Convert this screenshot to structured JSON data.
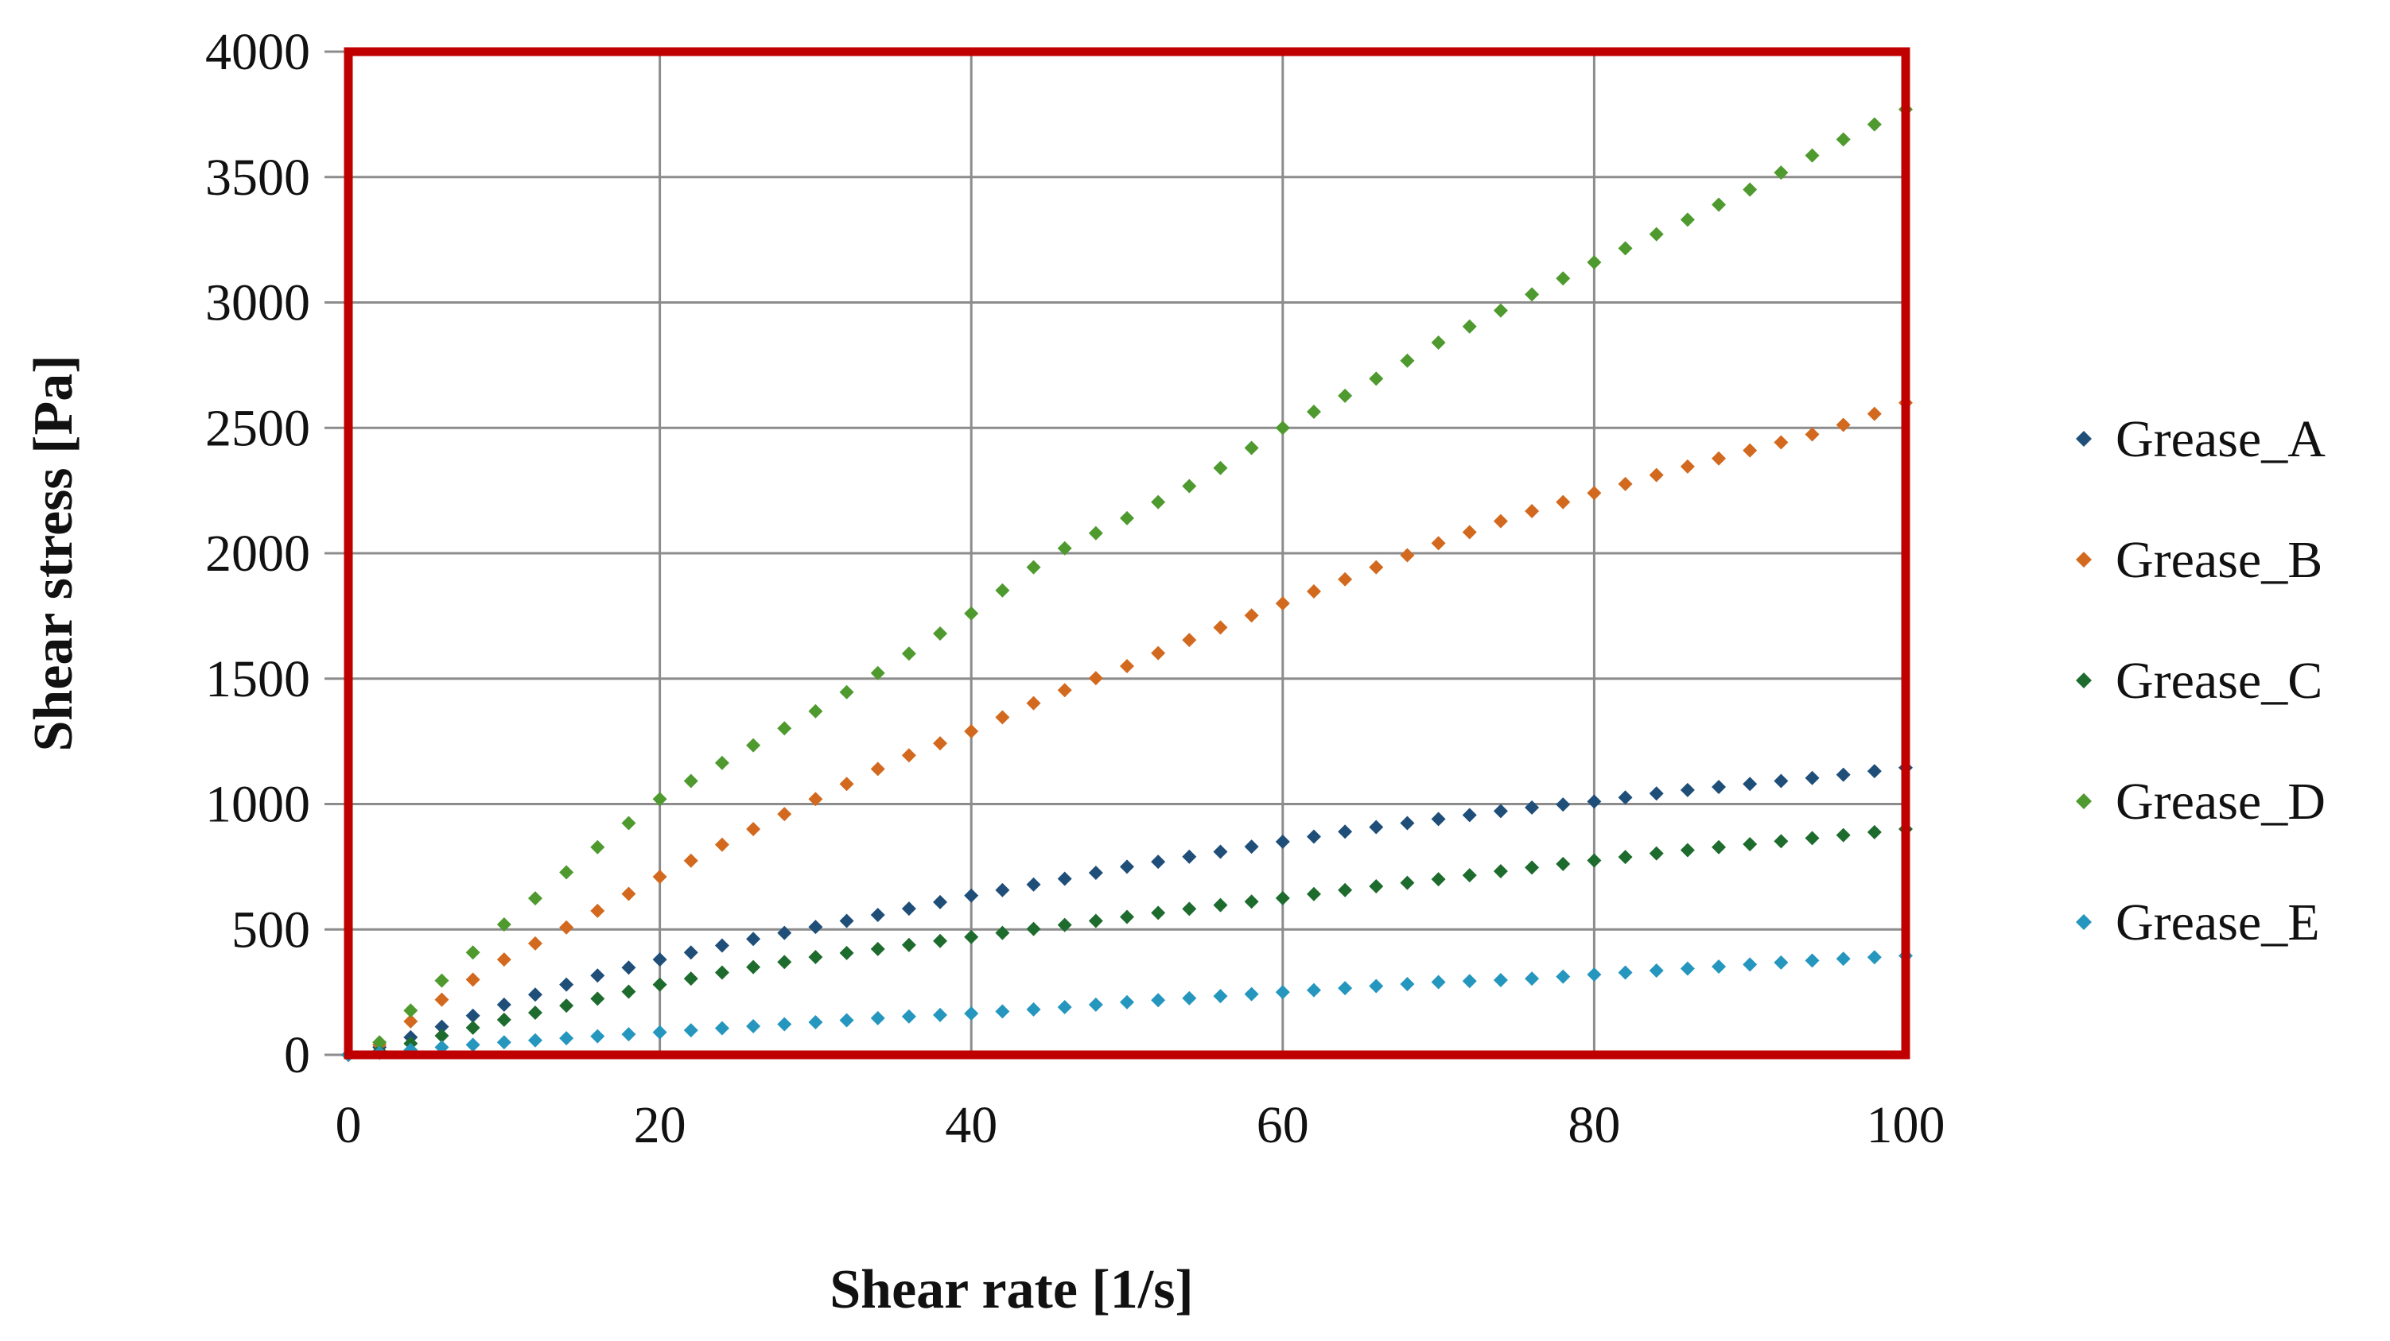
{
  "chart_data": {
    "type": "scatter",
    "title": "",
    "xlabel": "Shear rate [1/s]",
    "ylabel": "Shear stress [Pa]",
    "xlim": [
      0,
      100
    ],
    "ylim": [
      0,
      4000
    ],
    "x_ticks": [
      "0",
      "20",
      "40",
      "60",
      "80",
      "100"
    ],
    "y_ticks": [
      "0",
      "500",
      "1000",
      "1500",
      "2000",
      "2500",
      "3000",
      "3500",
      "4000"
    ],
    "grid": true,
    "legend_position": "right",
    "plot_border_color": "#c00000",
    "x_sample_step": 2,
    "series": [
      {
        "name": "Grease_A",
        "color": "#1f4e79",
        "points": [
          [
            0,
            0
          ],
          [
            2,
            30
          ],
          [
            5,
            90
          ],
          [
            10,
            200
          ],
          [
            15,
            300
          ],
          [
            20,
            380
          ],
          [
            25,
            450
          ],
          [
            30,
            510
          ],
          [
            35,
            570
          ],
          [
            40,
            635
          ],
          [
            45,
            690
          ],
          [
            50,
            750
          ],
          [
            55,
            800
          ],
          [
            60,
            850
          ],
          [
            65,
            900
          ],
          [
            70,
            940
          ],
          [
            75,
            980
          ],
          [
            80,
            1010
          ],
          [
            85,
            1050
          ],
          [
            90,
            1080
          ],
          [
            95,
            1110
          ],
          [
            100,
            1145
          ]
        ]
      },
      {
        "name": "Grease_B",
        "color": "#d2691e",
        "points": [
          [
            0,
            0
          ],
          [
            2,
            40
          ],
          [
            5,
            180
          ],
          [
            10,
            380
          ],
          [
            15,
            540
          ],
          [
            20,
            710
          ],
          [
            25,
            870
          ],
          [
            30,
            1020
          ],
          [
            35,
            1170
          ],
          [
            40,
            1290
          ],
          [
            45,
            1430
          ],
          [
            50,
            1550
          ],
          [
            55,
            1680
          ],
          [
            60,
            1800
          ],
          [
            65,
            1920
          ],
          [
            70,
            2040
          ],
          [
            75,
            2150
          ],
          [
            80,
            2240
          ],
          [
            85,
            2330
          ],
          [
            90,
            2410
          ],
          [
            95,
            2490
          ],
          [
            100,
            2600
          ]
        ]
      },
      {
        "name": "Grease_C",
        "color": "#1e6b2e",
        "points": [
          [
            0,
            0
          ],
          [
            2,
            15
          ],
          [
            5,
            60
          ],
          [
            10,
            140
          ],
          [
            15,
            210
          ],
          [
            20,
            280
          ],
          [
            25,
            340
          ],
          [
            30,
            390
          ],
          [
            35,
            430
          ],
          [
            40,
            470
          ],
          [
            45,
            510
          ],
          [
            50,
            550
          ],
          [
            55,
            590
          ],
          [
            60,
            625
          ],
          [
            65,
            665
          ],
          [
            70,
            700
          ],
          [
            75,
            740
          ],
          [
            80,
            775
          ],
          [
            85,
            810
          ],
          [
            90,
            840
          ],
          [
            95,
            870
          ],
          [
            100,
            900
          ]
        ]
      },
      {
        "name": "Grease_D",
        "color": "#4e9a2e",
        "points": [
          [
            0,
            0
          ],
          [
            2,
            50
          ],
          [
            5,
            240
          ],
          [
            10,
            520
          ],
          [
            15,
            780
          ],
          [
            20,
            1020
          ],
          [
            25,
            1200
          ],
          [
            30,
            1370
          ],
          [
            35,
            1560
          ],
          [
            40,
            1760
          ],
          [
            45,
            1990
          ],
          [
            50,
            2140
          ],
          [
            55,
            2300
          ],
          [
            60,
            2500
          ],
          [
            65,
            2660
          ],
          [
            70,
            2840
          ],
          [
            75,
            3000
          ],
          [
            80,
            3160
          ],
          [
            85,
            3300
          ],
          [
            90,
            3450
          ],
          [
            95,
            3620
          ],
          [
            100,
            3770
          ]
        ]
      },
      {
        "name": "Grease_E",
        "color": "#2596be",
        "points": [
          [
            0,
            0
          ],
          [
            2,
            8
          ],
          [
            5,
            25
          ],
          [
            10,
            50
          ],
          [
            15,
            70
          ],
          [
            20,
            90
          ],
          [
            25,
            110
          ],
          [
            30,
            130
          ],
          [
            35,
            150
          ],
          [
            40,
            165
          ],
          [
            45,
            185
          ],
          [
            50,
            210
          ],
          [
            55,
            230
          ],
          [
            60,
            250
          ],
          [
            65,
            270
          ],
          [
            70,
            290
          ],
          [
            75,
            300
          ],
          [
            80,
            320
          ],
          [
            85,
            340
          ],
          [
            90,
            360
          ],
          [
            95,
            380
          ],
          [
            100,
            395
          ]
        ]
      }
    ]
  }
}
